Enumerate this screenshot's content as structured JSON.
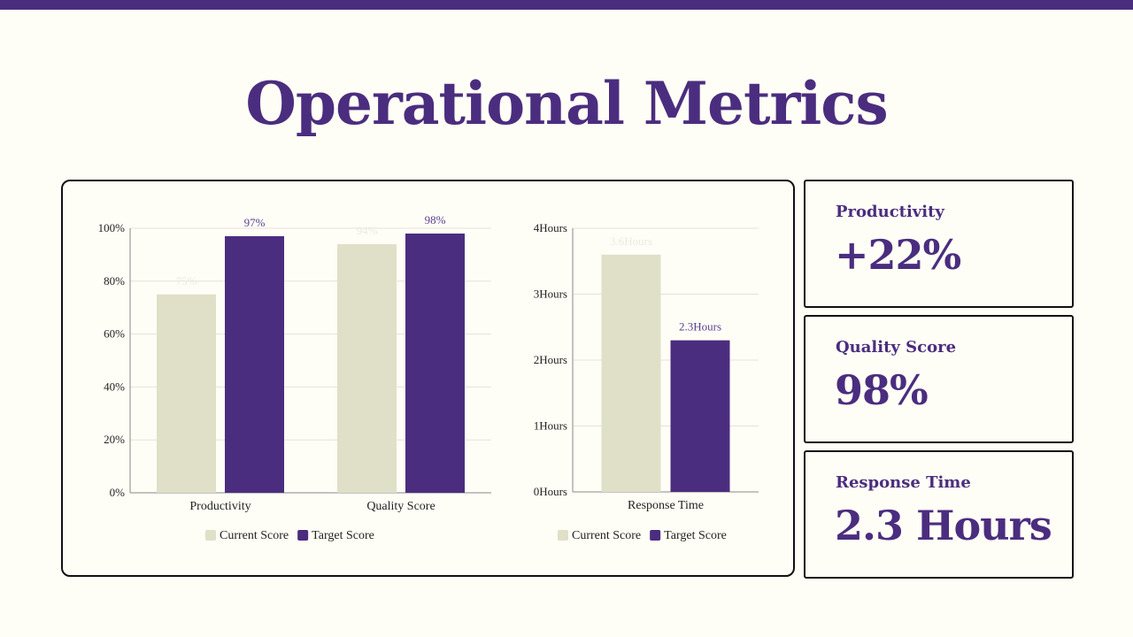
{
  "title": "Operational Metrics",
  "colors": {
    "accent": "#4b2d7f",
    "current": "#e0dfc8",
    "background": "#fffef6"
  },
  "kpis": [
    {
      "label": "Productivity",
      "value": "+22%"
    },
    {
      "label": "Quality Score",
      "value": "98%"
    },
    {
      "label": "Response Time",
      "value": "2.3 Hours"
    }
  ],
  "chart_data": [
    {
      "type": "bar",
      "categories": [
        "Productivity",
        "Quality Score"
      ],
      "series": [
        {
          "name": "Current Score",
          "values": [
            75,
            94
          ],
          "labels": [
            "75%",
            "94%"
          ],
          "color": "#e0dfc8"
        },
        {
          "name": "Target Score",
          "values": [
            97,
            98
          ],
          "labels": [
            "97%",
            "98%"
          ],
          "color": "#4b2d7f"
        }
      ],
      "yticks": [
        "0%",
        "20%",
        "40%",
        "60%",
        "80%",
        "100%"
      ],
      "ylim": [
        0,
        100
      ],
      "grid": true,
      "legend": "bottom"
    },
    {
      "type": "bar",
      "categories": [
        "Response Time"
      ],
      "series": [
        {
          "name": "Current Score",
          "values": [
            3.6
          ],
          "labels": [
            "3.6Hours"
          ],
          "color": "#e0dfc8"
        },
        {
          "name": "Target Score",
          "values": [
            2.3
          ],
          "labels": [
            "2.3Hours"
          ],
          "color": "#4b2d7f"
        }
      ],
      "yticks": [
        "0Hours",
        "1Hours",
        "2Hours",
        "3Hours",
        "4Hours"
      ],
      "ylim": [
        0,
        4
      ],
      "grid": true,
      "legend": "bottom"
    }
  ]
}
